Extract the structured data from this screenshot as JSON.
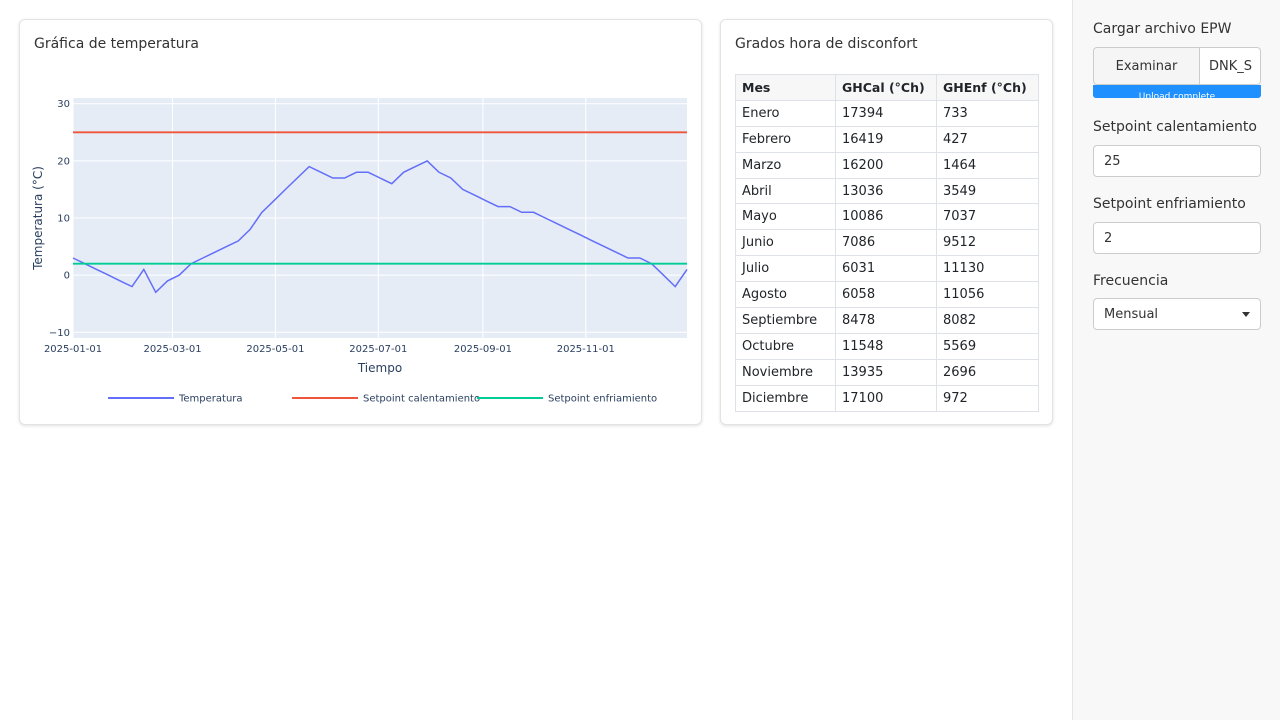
{
  "chart_card": {
    "title": "Gráfica de temperatura"
  },
  "table_card": {
    "title": "Grados hora de disconfort"
  },
  "table": {
    "headers": [
      "Mes",
      "GHCal (°Ch)",
      "GHEnf (°Ch)"
    ],
    "rows": [
      [
        "Enero",
        "17394",
        "733"
      ],
      [
        "Febrero",
        "16419",
        "427"
      ],
      [
        "Marzo",
        "16200",
        "1464"
      ],
      [
        "Abril",
        "13036",
        "3549"
      ],
      [
        "Mayo",
        "10086",
        "7037"
      ],
      [
        "Junio",
        "7086",
        "9512"
      ],
      [
        "Julio",
        "6031",
        "11130"
      ],
      [
        "Agosto",
        "6058",
        "11056"
      ],
      [
        "Septiembre",
        "8478",
        "8082"
      ],
      [
        "Octubre",
        "11548",
        "5569"
      ],
      [
        "Noviembre",
        "13935",
        "2696"
      ],
      [
        "Diciembre",
        "17100",
        "972"
      ]
    ]
  },
  "sidebar": {
    "upload_label": "Cargar archivo EPW",
    "browse_label": "Examinar",
    "file_name": "DNK_S",
    "upload_status": "Upload complete",
    "heating_label": "Setpoint calentamiento",
    "heating_value": "25",
    "cooling_label": "Setpoint enfriamiento",
    "cooling_value": "2",
    "frequency_label": "Frecuencia",
    "frequency_value": "Mensual"
  },
  "chart_data": {
    "type": "line",
    "xlabel": "Tiempo",
    "ylabel": "Temperatura (°C)",
    "ylim": [
      -11,
      31
    ],
    "xlim": [
      "2025-01-01",
      "2025-12-31"
    ],
    "x_ticks": [
      "2025-01-01",
      "2025-03-01",
      "2025-05-01",
      "2025-07-01",
      "2025-09-01",
      "2025-11-01"
    ],
    "y_ticks": [
      "30",
      "20",
      "10",
      "0",
      "−10"
    ],
    "legend_position": "bottom",
    "grid": true,
    "colors": {
      "temperature": "#636efa",
      "heating": "#ef553b",
      "cooling": "#00cc96",
      "plot_bg": "#e5ecf6"
    },
    "series": [
      {
        "name": "Temperatura",
        "x": [
          "2025-01-01",
          "2025-01-08",
          "2025-01-15",
          "2025-01-22",
          "2025-01-29",
          "2025-02-05",
          "2025-02-12",
          "2025-02-19",
          "2025-02-26",
          "2025-03-05",
          "2025-03-12",
          "2025-03-19",
          "2025-03-26",
          "2025-04-02",
          "2025-04-09",
          "2025-04-16",
          "2025-04-23",
          "2025-04-30",
          "2025-05-07",
          "2025-05-14",
          "2025-05-21",
          "2025-05-28",
          "2025-06-04",
          "2025-06-11",
          "2025-06-18",
          "2025-06-25",
          "2025-07-02",
          "2025-07-09",
          "2025-07-16",
          "2025-07-23",
          "2025-07-30",
          "2025-08-06",
          "2025-08-13",
          "2025-08-20",
          "2025-08-27",
          "2025-09-03",
          "2025-09-10",
          "2025-09-17",
          "2025-09-24",
          "2025-10-01",
          "2025-10-08",
          "2025-10-15",
          "2025-10-22",
          "2025-10-29",
          "2025-11-05",
          "2025-11-12",
          "2025-11-19",
          "2025-11-26",
          "2025-12-03",
          "2025-12-10",
          "2025-12-17",
          "2025-12-24",
          "2025-12-31"
        ],
        "y": [
          3,
          2,
          1,
          0,
          -1,
          -2,
          1,
          -3,
          -1,
          0,
          2,
          3,
          4,
          5,
          6,
          8,
          11,
          13,
          15,
          17,
          19,
          18,
          17,
          17,
          18,
          18,
          17,
          16,
          18,
          19,
          20,
          18,
          17,
          15,
          14,
          13,
          12,
          12,
          11,
          11,
          10,
          9,
          8,
          7,
          6,
          5,
          4,
          3,
          3,
          2,
          0,
          -2,
          1
        ]
      },
      {
        "name": "Setpoint calentamiento",
        "x": [
          "2025-01-01",
          "2025-12-31"
        ],
        "y": [
          25,
          25
        ]
      },
      {
        "name": "Setpoint enfriamiento",
        "x": [
          "2025-01-01",
          "2025-12-31"
        ],
        "y": [
          2,
          2
        ]
      }
    ]
  }
}
